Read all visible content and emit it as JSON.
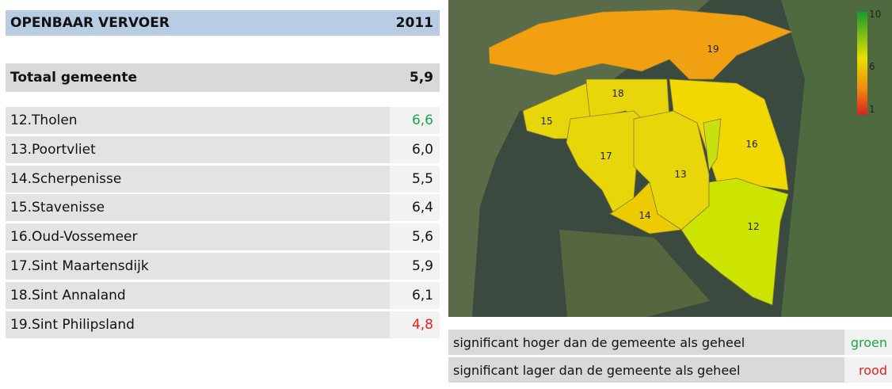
{
  "table": {
    "header": [
      "OPENBAAR VERVOER",
      "2011"
    ],
    "total": [
      "Totaal gemeente",
      "5,9"
    ],
    "rows": [
      [
        "12.Tholen",
        "6,6"
      ],
      [
        "13.Poortvliet",
        "6,0"
      ],
      [
        "14.Scherpenisse",
        "5,5"
      ],
      [
        "15.Stavenisse",
        "6,4"
      ],
      [
        "16.Oud-Vossemeer",
        "5,6"
      ],
      [
        "17.Sint Maartensdijk",
        "5,9"
      ],
      [
        "18.Sint Annaland",
        "6,1"
      ],
      [
        "19.Sint Philipsland",
        "4,8"
      ]
    ]
  },
  "map": {
    "regions": [
      "19",
      "18",
      "15",
      "17",
      "13",
      "16",
      "14",
      "12"
    ],
    "scale": [
      "10",
      "6",
      "1"
    ]
  },
  "legend": [
    [
      "significant hoger dan de gemeente als geheel",
      "groen"
    ],
    [
      "significant lager dan de gemeente als geheel",
      "rood"
    ]
  ]
}
